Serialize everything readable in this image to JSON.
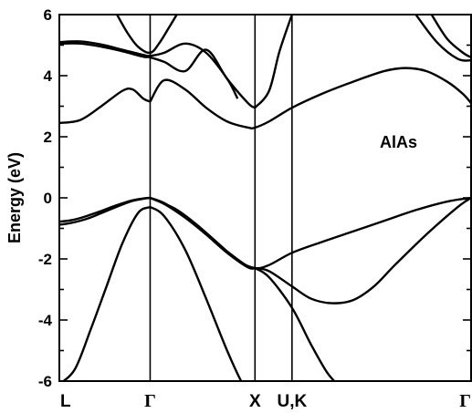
{
  "chart_data": {
    "type": "line",
    "ylabel": "Energy (eV)",
    "ylim": [
      -6,
      6
    ],
    "yticks": [
      6,
      4,
      2,
      0,
      -2,
      -4,
      -6
    ],
    "annotation": "AlAs",
    "kpoints": [
      {
        "x": 0.0,
        "label": "L",
        "style": "sans"
      },
      {
        "x": 0.866,
        "label": "Γ",
        "style": "gamma"
      },
      {
        "x": 1.866,
        "label": "X",
        "style": "sans"
      },
      {
        "x": 2.219,
        "label": "U,K",
        "style": "sans"
      },
      {
        "x": 3.927,
        "label": "Γ",
        "style": "gamma"
      }
    ],
    "xlim": [
      0,
      3.927
    ],
    "line_color": "#000000",
    "series": [
      {
        "x": [
          0.0,
          0.1,
          0.2,
          0.3,
          0.4,
          0.5,
          0.6,
          0.7,
          0.8,
          0.866
        ],
        "values": [
          -0.78,
          -0.74,
          -0.66,
          -0.55,
          -0.43,
          -0.3,
          -0.18,
          -0.08,
          -0.02,
          0.0
        ]
      },
      {
        "x": [
          0.0,
          0.1,
          0.2,
          0.3,
          0.4,
          0.5,
          0.6,
          0.7,
          0.8,
          0.866
        ],
        "values": [
          -0.88,
          -0.83,
          -0.75,
          -0.64,
          -0.5,
          -0.36,
          -0.22,
          -0.1,
          -0.03,
          0.0
        ]
      },
      {
        "x": [
          0.866,
          1.0,
          1.2,
          1.4,
          1.6,
          1.8,
          1.866
        ],
        "values": [
          0.0,
          -0.17,
          -0.62,
          -1.15,
          -1.75,
          -2.25,
          -2.3
        ]
      },
      {
        "x": [
          0.866,
          1.0,
          1.2,
          1.4,
          1.6,
          1.8,
          1.866
        ],
        "values": [
          0.0,
          -0.2,
          -0.65,
          -1.2,
          -1.8,
          -2.28,
          -2.3
        ]
      },
      {
        "x": [
          0.866,
          1.1,
          1.3,
          1.5,
          1.7,
          1.866,
          2.0,
          2.219,
          2.5,
          2.8,
          3.1,
          3.4,
          3.7,
          3.927
        ],
        "values": [
          0.0,
          -0.35,
          -0.85,
          -1.45,
          -2.05,
          -2.3,
          -2.2,
          -1.8,
          -1.45,
          -1.1,
          -0.75,
          -0.4,
          -0.12,
          0.0
        ]
      },
      {
        "x": [
          1.866,
          2.0,
          2.219,
          2.4,
          2.6,
          2.8,
          3.0,
          3.2,
          3.5,
          3.8,
          3.927
        ],
        "values": [
          -2.3,
          -2.4,
          -2.9,
          -3.3,
          -3.45,
          -3.35,
          -2.9,
          -2.2,
          -1.2,
          -0.3,
          0.0
        ]
      },
      {
        "x": [
          0.0,
          0.15,
          0.3,
          0.45,
          0.6,
          0.75,
          0.866
        ],
        "values": [
          -6.1,
          -5.6,
          -4.3,
          -2.9,
          -1.5,
          -0.5,
          -0.3
        ]
      },
      {
        "x": [
          0.866,
          1.0,
          1.2,
          1.4,
          1.6,
          1.75,
          1.866
        ],
        "values": [
          -0.3,
          -0.6,
          -1.7,
          -3.3,
          -5.0,
          -6.1,
          -6.6
        ]
      },
      {
        "x": [
          1.866,
          2.0,
          2.219,
          2.4,
          2.55,
          2.65
        ],
        "values": [
          -2.3,
          -2.6,
          -3.6,
          -4.8,
          -5.7,
          -6.1
        ]
      },
      {
        "x": [
          0.0,
          0.2,
          0.4,
          0.6,
          0.7,
          0.8,
          0.866
        ],
        "values": [
          2.45,
          2.55,
          3.0,
          3.5,
          3.55,
          3.25,
          3.15
        ]
      },
      {
        "x": [
          0.866,
          1.0,
          1.2,
          1.4,
          1.6,
          1.8,
          1.866,
          2.0,
          2.219,
          2.5,
          2.8,
          3.1,
          3.3,
          3.5,
          3.7,
          3.85,
          3.927
        ],
        "values": [
          3.15,
          3.85,
          3.55,
          2.95,
          2.5,
          2.3,
          2.3,
          2.5,
          2.95,
          3.4,
          3.8,
          4.15,
          4.25,
          4.15,
          3.8,
          3.4,
          3.1
        ]
      },
      {
        "x": [
          0.0,
          0.2,
          0.4,
          0.6,
          0.8,
          0.866,
          1.0,
          1.2,
          1.4,
          1.6,
          1.8,
          1.866
        ],
        "values": [
          5.05,
          5.05,
          4.95,
          4.8,
          4.62,
          4.6,
          4.45,
          4.15,
          4.85,
          3.9,
          3.1,
          2.95
        ]
      },
      {
        "x": [
          0.0,
          0.2,
          0.4,
          0.6,
          0.8,
          0.866,
          1.0,
          1.2,
          1.4,
          1.6,
          1.7
        ],
        "values": [
          5.1,
          5.12,
          5.02,
          4.85,
          4.68,
          4.65,
          4.75,
          5.05,
          4.75,
          3.9,
          3.25
        ]
      },
      {
        "x": [
          1.866,
          2.0,
          2.1,
          2.219
        ],
        "values": [
          2.95,
          3.5,
          4.8,
          6.0
        ]
      },
      {
        "x": [
          0.55,
          0.65,
          0.75,
          0.866,
          0.95,
          1.05,
          1.12
        ],
        "values": [
          6.0,
          5.4,
          4.95,
          4.75,
          5.05,
          5.6,
          6.0
        ]
      },
      {
        "x": [
          3.4,
          3.6,
          3.8,
          3.927
        ],
        "values": [
          6.0,
          5.1,
          4.55,
          4.5
        ]
      },
      {
        "x": [
          3.55,
          3.7,
          3.85,
          3.927
        ],
        "values": [
          6.0,
          5.2,
          4.75,
          4.6
        ]
      }
    ]
  }
}
